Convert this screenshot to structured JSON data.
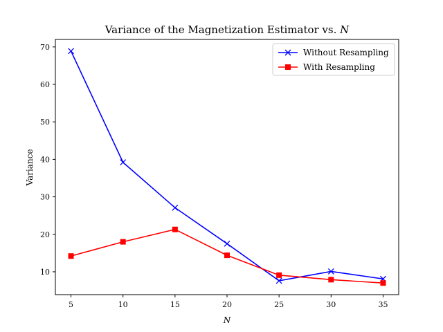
{
  "chart_data": {
    "type": "line",
    "title": "Variance of the Magnetization Estimator vs. N",
    "title_prefix": "Variance of the Magnetization Estimator vs. ",
    "title_var": "N",
    "xlabel": "N",
    "ylabel": "Variance",
    "x": [
      5,
      10,
      15,
      20,
      25,
      30,
      35
    ],
    "xticks": [
      5,
      10,
      15,
      20,
      25,
      30,
      35
    ],
    "yticks": [
      10,
      20,
      30,
      40,
      50,
      60,
      70
    ],
    "xlim": [
      3.5,
      36.5
    ],
    "ylim": [
      3.9,
      72.0
    ],
    "grid": false,
    "legend_position": "top-right",
    "series": [
      {
        "name": "Without Resampling",
        "color": "#0000ff",
        "marker": "x",
        "values": [
          68.9,
          39.2,
          27.1,
          17.5,
          7.6,
          10.1,
          8.1
        ]
      },
      {
        "name": "With Resampling",
        "color": "#ff0000",
        "marker": "square",
        "values": [
          14.2,
          18.0,
          21.3,
          14.4,
          9.1,
          7.9,
          7.0
        ]
      }
    ]
  }
}
